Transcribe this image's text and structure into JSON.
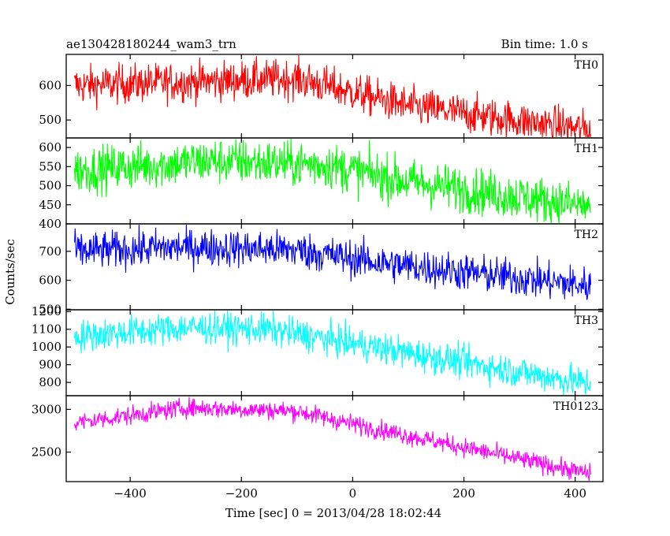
{
  "chart_data": {
    "type": "line",
    "title": "ae130428180244_wam3_trn",
    "bin_time_label": "Bin time: 1.0 s",
    "xlabel": "Time [sec] 0 = 2013/04/28 18:02:44",
    "ylabel": "Counts/sec",
    "xlim": [
      -515,
      450
    ],
    "x_ticks": [
      -400,
      -200,
      0,
      200,
      400
    ],
    "x_tick_labels": [
      "−400",
      "−200",
      "0",
      "200",
      "400"
    ],
    "x_range": [
      -500,
      428
    ],
    "bin_seconds": 1.0,
    "series": [
      {
        "name": "TH0",
        "color": "#ff0000",
        "ylim": [
          448,
          690
        ],
        "y_ticks": [
          500,
          600
        ],
        "y_tick_labels": [
          "500",
          "600"
        ],
        "trend_x": [
          -500,
          -100,
          -50,
          100,
          430
        ],
        "trend_y": [
          600,
          620,
          600,
          540,
          470
        ],
        "noise": 28
      },
      {
        "name": "TH1",
        "color": "#00ff00",
        "ylim": [
          400,
          625
        ],
        "y_ticks": [
          400,
          450,
          500,
          550,
          600
        ],
        "y_tick_labels": [
          "400",
          "450",
          "500",
          "550",
          "600"
        ],
        "trend_x": [
          -500,
          -250,
          -50,
          100,
          430
        ],
        "trend_y": [
          540,
          565,
          555,
          510,
          445
        ],
        "noise": 30
      },
      {
        "name": "TH2",
        "color": "#0000ff",
        "ylim": [
          498,
          795
        ],
        "y_ticks": [
          500,
          600,
          700
        ],
        "y_tick_labels": [
          "500",
          "600",
          "700"
        ],
        "trend_x": [
          -500,
          -300,
          -100,
          50,
          430
        ],
        "trend_y": [
          700,
          715,
          705,
          660,
          580
        ],
        "noise": 32
      },
      {
        "name": "TH3",
        "color": "#00ffff",
        "ylim": [
          725,
          1210
        ],
        "y_ticks": [
          800,
          900,
          1000,
          1100,
          1200
        ],
        "y_tick_labels": [
          "800",
          "900",
          "1000",
          "1100",
          "1200"
        ],
        "trend_x": [
          -500,
          -300,
          -150,
          0,
          430
        ],
        "trend_y": [
          1060,
          1110,
          1100,
          1020,
          790
        ],
        "noise": 45
      },
      {
        "name": "TH0123",
        "color": "#ff00ff",
        "ylim": [
          2155,
          3160
        ],
        "y_ticks": [
          2500,
          3000
        ],
        "y_tick_labels": [
          "2500",
          "3000"
        ],
        "trend_x": [
          -500,
          -300,
          -100,
          0,
          430
        ],
        "trend_y": [
          2840,
          3020,
          2980,
          2830,
          2240
        ],
        "noise": 55
      }
    ],
    "grid": false,
    "legend": "none"
  }
}
